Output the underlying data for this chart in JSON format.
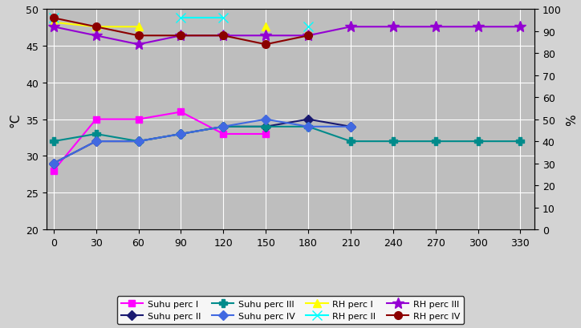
{
  "x": [
    0,
    30,
    60,
    90,
    120,
    150,
    180,
    210,
    240,
    270,
    300,
    330
  ],
  "suhu_perc_I": [
    28,
    35,
    35,
    36,
    33,
    33,
    null,
    null,
    null,
    null,
    null,
    null
  ],
  "suhu_perc_II": [
    29,
    32,
    32,
    33,
    34,
    34,
    35,
    34,
    null,
    null,
    null,
    null
  ],
  "suhu_perc_III": [
    32,
    33,
    32,
    33,
    34,
    34,
    34,
    32,
    32,
    32,
    32,
    32
  ],
  "suhu_perc_IV": [
    29,
    32,
    32,
    33,
    34,
    35,
    34,
    34,
    null,
    null,
    null,
    null
  ],
  "rh_perc_I": [
    94,
    92,
    92,
    null,
    null,
    92,
    null,
    null,
    null,
    null,
    null,
    null
  ],
  "rh_perc_II": [
    96,
    null,
    null,
    96,
    96,
    null,
    92,
    null,
    null,
    null,
    null,
    null
  ],
  "rh_perc_III": [
    92,
    88,
    84,
    88,
    88,
    88,
    88,
    92,
    92,
    92,
    92,
    92
  ],
  "rh_perc_IV": [
    96,
    92,
    88,
    88,
    88,
    84,
    88,
    null,
    null,
    null,
    null,
    null
  ],
  "ylabel_left": "°C",
  "ylabel_right": "%",
  "ylim_left": [
    20,
    50
  ],
  "ylim_right": [
    0,
    100
  ],
  "yticks_left": [
    20,
    25,
    30,
    35,
    40,
    45,
    50
  ],
  "yticks_right": [
    0,
    10,
    20,
    30,
    40,
    50,
    60,
    70,
    80,
    90,
    100
  ],
  "xlim": [
    -5,
    340
  ],
  "bg_color": "#bebebe",
  "fig_bg_color": "#d3d3d3",
  "legend_labels": [
    "Suhu perc I",
    "Suhu perc II",
    "Suhu perc III",
    "Suhu perc IV",
    "RH perc I",
    "RH perc II",
    "RH perc III",
    "RH perc IV"
  ],
  "colors": {
    "suhu_perc_I": "#ff00ff",
    "suhu_perc_II": "#191970",
    "suhu_perc_III": "#008b8b",
    "suhu_perc_IV": "#4169e1",
    "rh_perc_I": "#ffff00",
    "rh_perc_II": "#00ffff",
    "rh_perc_III": "#9400d3",
    "rh_perc_IV": "#8b0000"
  },
  "markers": {
    "suhu_perc_I": "s",
    "suhu_perc_II": "D",
    "suhu_perc_III": "P",
    "suhu_perc_IV": "D",
    "rh_perc_I": "^",
    "rh_perc_II": "x",
    "rh_perc_III": "*",
    "rh_perc_IV": "o"
  },
  "markersizes": {
    "suhu_perc_I": 6,
    "suhu_perc_II": 6,
    "suhu_perc_III": 7,
    "suhu_perc_IV": 6,
    "rh_perc_I": 7,
    "rh_perc_II": 8,
    "rh_perc_III": 10,
    "rh_perc_IV": 7
  }
}
